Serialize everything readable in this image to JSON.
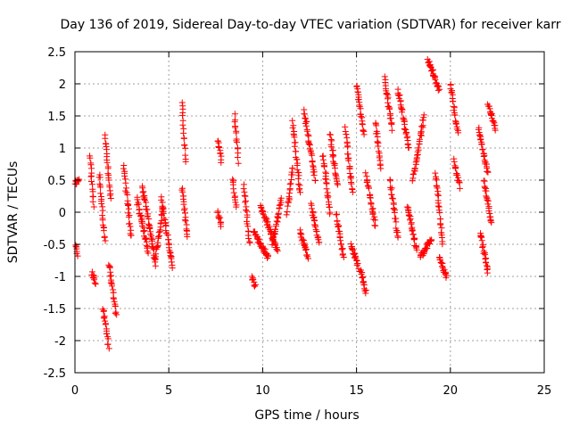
{
  "chart_data": {
    "type": "scatter",
    "title": "Day 136 of 2019, Sidereal Day-to-day VTEC variation (SDTVAR) for receiver karr",
    "xlabel": "GPS time / hours",
    "ylabel": "SDTVAR / TECUs",
    "xlim": [
      0,
      25
    ],
    "ylim": [
      -2.5,
      2.5
    ],
    "xticks": [
      0,
      5,
      10,
      15,
      20,
      25
    ],
    "xtick_labels": [
      "0",
      "5",
      "10",
      "15",
      "20",
      "25"
    ],
    "yticks": [
      -2.5,
      -2,
      -1.5,
      -1,
      -0.5,
      0,
      0.5,
      1,
      1.5,
      2,
      2.5
    ],
    "ytick_labels": [
      "-2.5",
      "-2",
      "-1.5",
      "-1",
      "-0.5",
      "0",
      "0.5",
      "1",
      "1.5",
      "2",
      "2.5"
    ],
    "grid": true,
    "marker": "+",
    "color": "#ff0000",
    "series": [
      {
        "name": "SDTVAR",
        "arcs": [
          {
            "x0": 0.0,
            "x1": 0.2,
            "y0": 0.45,
            "y1": 0.5
          },
          {
            "x0": 0.0,
            "x1": 0.15,
            "y0": -0.5,
            "y1": -0.65
          },
          {
            "x0": 0.8,
            "x1": 1.0,
            "y0": 0.9,
            "y1": 0.1
          },
          {
            "x0": 0.9,
            "x1": 1.1,
            "y0": -0.95,
            "y1": -1.1
          },
          {
            "x0": 1.3,
            "x1": 1.6,
            "y0": 0.6,
            "y1": -0.45
          },
          {
            "x0": 1.5,
            "x1": 1.8,
            "y0": -1.5,
            "y1": -2.1
          },
          {
            "x0": 1.6,
            "x1": 1.9,
            "y0": 1.2,
            "y1": 0.2
          },
          {
            "x0": 1.8,
            "x1": 2.2,
            "y0": -0.8,
            "y1": -1.6
          },
          {
            "x0": 2.6,
            "x1": 3.0,
            "y0": 0.7,
            "y1": -0.4
          },
          {
            "x0": 3.3,
            "x1": 3.9,
            "y0": 0.2,
            "y1": -0.6
          },
          {
            "x0": 3.6,
            "x1": 4.3,
            "y0": 0.4,
            "y1": -0.8
          },
          {
            "x0": 4.3,
            "x1": 4.7,
            "y0": -0.7,
            "y1": 0.1
          },
          {
            "x0": 4.6,
            "x1": 5.2,
            "y0": 0.2,
            "y1": -0.85
          },
          {
            "x0": 5.7,
            "x1": 5.9,
            "y0": 1.7,
            "y1": 0.8
          },
          {
            "x0": 5.7,
            "x1": 6.0,
            "y0": 0.4,
            "y1": -0.4
          },
          {
            "x0": 7.6,
            "x1": 7.8,
            "y0": 1.15,
            "y1": 0.8
          },
          {
            "x0": 7.6,
            "x1": 7.8,
            "y0": 0.0,
            "y1": -0.2
          },
          {
            "x0": 8.5,
            "x1": 8.7,
            "y0": 1.5,
            "y1": 0.8
          },
          {
            "x0": 8.4,
            "x1": 8.6,
            "y0": 0.5,
            "y1": 0.1
          },
          {
            "x0": 9.0,
            "x1": 9.3,
            "y0": 0.4,
            "y1": -0.5
          },
          {
            "x0": 9.4,
            "x1": 9.6,
            "y0": -1.0,
            "y1": -1.15
          },
          {
            "x0": 9.5,
            "x1": 10.3,
            "y0": -0.3,
            "y1": -0.7
          },
          {
            "x0": 9.9,
            "x1": 10.8,
            "y0": 0.1,
            "y1": -0.6
          },
          {
            "x0": 10.5,
            "x1": 11.0,
            "y0": -0.5,
            "y1": 0.2
          },
          {
            "x0": 11.3,
            "x1": 11.6,
            "y0": 0.0,
            "y1": 0.7
          },
          {
            "x0": 11.6,
            "x1": 12.0,
            "y0": 1.4,
            "y1": 0.3
          },
          {
            "x0": 12.0,
            "x1": 12.4,
            "y0": -0.3,
            "y1": -0.7
          },
          {
            "x0": 12.2,
            "x1": 12.8,
            "y0": 1.6,
            "y1": 0.5
          },
          {
            "x0": 12.6,
            "x1": 13.0,
            "y0": 0.1,
            "y1": -0.5
          },
          {
            "x0": 13.2,
            "x1": 13.6,
            "y0": 0.9,
            "y1": 0.0
          },
          {
            "x0": 13.6,
            "x1": 14.0,
            "y0": 1.2,
            "y1": 0.4
          },
          {
            "x0": 13.9,
            "x1": 14.3,
            "y0": 0.0,
            "y1": -0.7
          },
          {
            "x0": 14.4,
            "x1": 14.8,
            "y0": 1.3,
            "y1": 0.3
          },
          {
            "x0": 14.7,
            "x1": 15.1,
            "y0": -0.5,
            "y1": -0.85
          },
          {
            "x0": 15.0,
            "x1": 15.4,
            "y0": 2.0,
            "y1": 1.2
          },
          {
            "x0": 15.2,
            "x1": 15.5,
            "y0": -0.9,
            "y1": -1.25
          },
          {
            "x0": 15.5,
            "x1": 16.0,
            "y0": 0.6,
            "y1": -0.2
          },
          {
            "x0": 16.0,
            "x1": 16.3,
            "y0": 1.4,
            "y1": 0.7
          },
          {
            "x0": 16.5,
            "x1": 16.9,
            "y0": 2.1,
            "y1": 1.3
          },
          {
            "x0": 16.8,
            "x1": 17.2,
            "y0": 0.5,
            "y1": -0.4
          },
          {
            "x0": 17.2,
            "x1": 17.8,
            "y0": 1.9,
            "y1": 1.0
          },
          {
            "x0": 17.7,
            "x1": 18.2,
            "y0": 0.1,
            "y1": -0.6
          },
          {
            "x0": 18.0,
            "x1": 18.6,
            "y0": 0.5,
            "y1": 1.5
          },
          {
            "x0": 18.4,
            "x1": 19.0,
            "y0": -0.7,
            "y1": -0.4
          },
          {
            "x0": 18.8,
            "x1": 19.4,
            "y0": 2.4,
            "y1": 1.9
          },
          {
            "x0": 19.2,
            "x1": 19.6,
            "y0": 0.6,
            "y1": -0.5
          },
          {
            "x0": 19.4,
            "x1": 19.8,
            "y0": -0.7,
            "y1": -1.0
          },
          {
            "x0": 20.0,
            "x1": 20.4,
            "y0": 2.0,
            "y1": 1.2
          },
          {
            "x0": 20.2,
            "x1": 20.5,
            "y0": 0.8,
            "y1": 0.4
          },
          {
            "x0": 21.5,
            "x1": 22.0,
            "y0": 1.3,
            "y1": 0.6
          },
          {
            "x0": 21.6,
            "x1": 22.0,
            "y0": -0.3,
            "y1": -0.95
          },
          {
            "x0": 21.8,
            "x1": 22.2,
            "y0": 0.5,
            "y1": -0.2
          },
          {
            "x0": 22.0,
            "x1": 22.4,
            "y0": 1.7,
            "y1": 1.3
          }
        ]
      }
    ]
  }
}
